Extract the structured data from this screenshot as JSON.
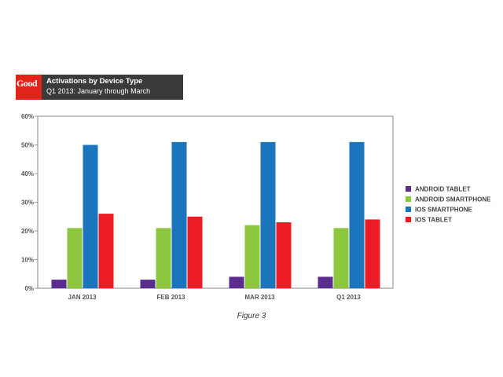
{
  "logo": {
    "text": "Good",
    "color": "#e2231a"
  },
  "header": {
    "title": "Activations by Device Type",
    "subtitle": "Q1 2013: January through March"
  },
  "caption": "Figure 3",
  "chart_data": {
    "type": "bar",
    "categories": [
      "JAN 2013",
      "FEB 2013",
      "MAR 2013",
      "Q1 2013"
    ],
    "series": [
      {
        "name": "ANDROID TABLET",
        "color": "#5b2d8e",
        "values": [
          3,
          3,
          4,
          4
        ]
      },
      {
        "name": "ANDROID SMARTPHONE",
        "color": "#8dc63f",
        "values": [
          21,
          21,
          22,
          21
        ]
      },
      {
        "name": "IOS SMARTPHONE",
        "color": "#1a75bc",
        "values": [
          50,
          51,
          51,
          51
        ]
      },
      {
        "name": "IOS TABLET",
        "color": "#ed1c24",
        "values": [
          26,
          25,
          23,
          24
        ]
      }
    ],
    "ylim": [
      0,
      60
    ],
    "yticks": [
      0,
      10,
      20,
      30,
      40,
      50,
      60
    ],
    "ytick_labels": [
      "0%",
      "10%",
      "20%",
      "30%",
      "40%",
      "50%",
      "60%"
    ],
    "grid": false,
    "legend": "right"
  }
}
